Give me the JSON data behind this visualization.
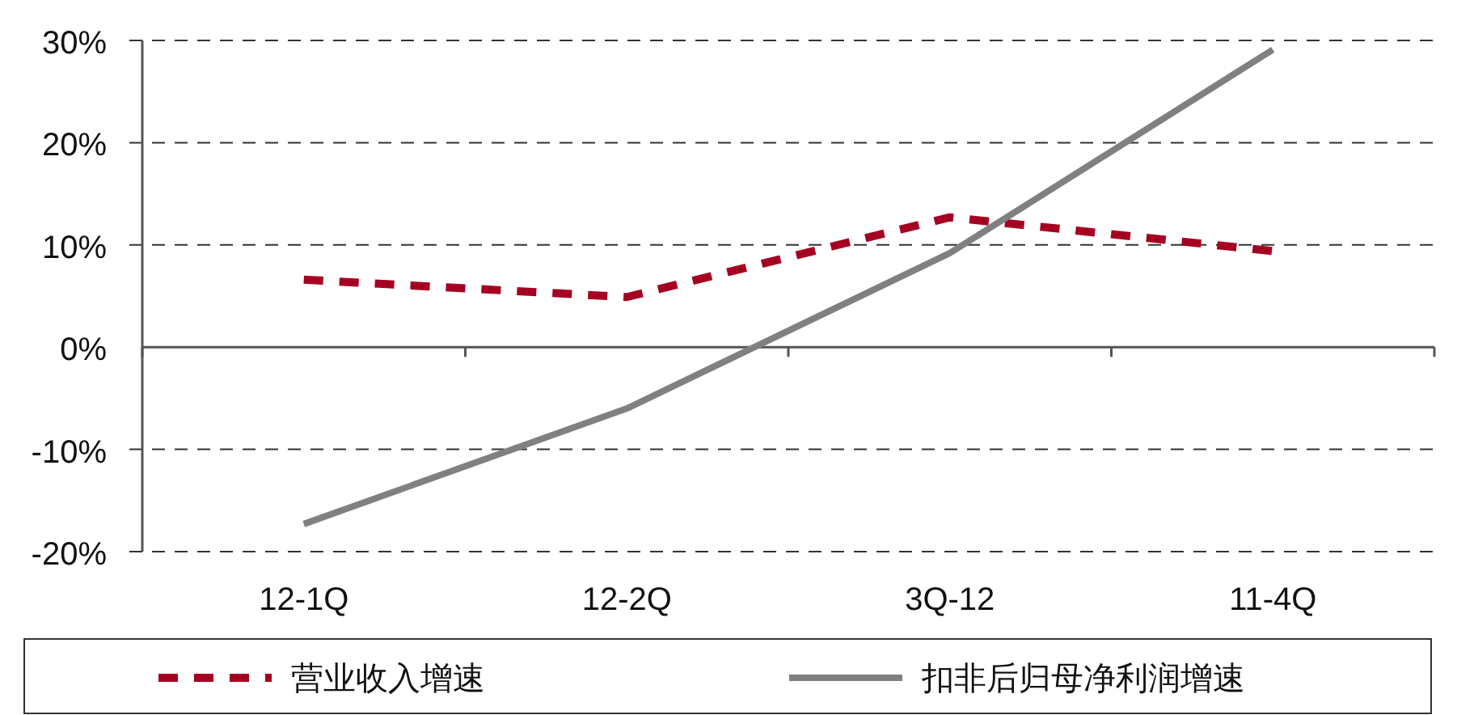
{
  "chart_data": {
    "type": "line",
    "categories": [
      "12-1Q",
      "12-2Q",
      "3Q-12",
      "11-4Q"
    ],
    "series": [
      {
        "name": "营业收入增速",
        "color": "#a50021",
        "line_style": "dashed",
        "values": [
          6.6,
          4.9,
          12.7,
          9.4
        ]
      },
      {
        "name": "扣非后归母净利润增速",
        "color": "#808080",
        "line_style": "solid",
        "values": [
          -17.3,
          -6.0,
          9.2,
          29.1
        ]
      }
    ],
    "ylim": [
      -20,
      30
    ],
    "yticks": [
      {
        "value": -20,
        "label": "-20%"
      },
      {
        "value": -10,
        "label": "-10%"
      },
      {
        "value": 0,
        "label": "0%"
      },
      {
        "value": 10,
        "label": "10%"
      },
      {
        "value": 20,
        "label": "20%"
      },
      {
        "value": 30,
        "label": "30%"
      }
    ],
    "grid": "y",
    "legend": "bottom",
    "marker": "none"
  }
}
